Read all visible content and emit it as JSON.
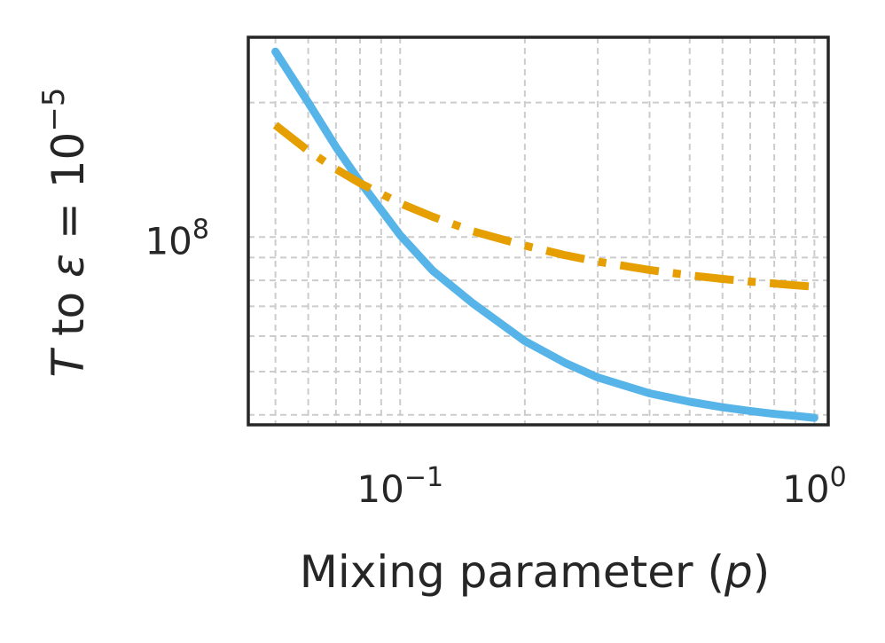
{
  "chart_data": {
    "type": "line",
    "x_scale": "log",
    "y_scale": "log",
    "xlabel": "Mixing parameter (p)",
    "ylabel": "T to ε = 10^-5",
    "xlim": [
      0.043,
      1.08
    ],
    "ylim": [
      38000000,
      280000000
    ],
    "grid": true,
    "grid_style": "dashed",
    "x_ticks": [
      {
        "value": 0.1,
        "base": "10",
        "exp": "−1"
      },
      {
        "value": 1,
        "base": "10",
        "exp": "0"
      }
    ],
    "y_ticks": [
      {
        "value": 100000000,
        "base": "10",
        "exp": "8"
      }
    ],
    "series": [
      {
        "name": "",
        "color": "#56B4E9",
        "dash": "solid",
        "x": [
          0.05,
          0.06,
          0.07,
          0.08,
          0.1,
          0.12,
          0.15,
          0.2,
          0.25,
          0.3,
          0.4,
          0.5,
          0.6,
          0.7,
          0.8,
          0.9,
          1.0
        ],
        "y": [
          260000000,
          200000000,
          159000000,
          133000000,
          101000000,
          84000000,
          71000000,
          58500000,
          52300000,
          48500000,
          44700000,
          42800000,
          41600000,
          40800000,
          40200000,
          39800000,
          39400000
        ]
      },
      {
        "name": "",
        "color": "#E69F00",
        "dash": "dashdot",
        "x": [
          0.05,
          0.06,
          0.07,
          0.08,
          0.1,
          0.12,
          0.15,
          0.2,
          0.25,
          0.3,
          0.4,
          0.5,
          0.6,
          0.7,
          0.8,
          0.9,
          1.0
        ],
        "y": [
          178000000,
          156000000,
          142000000,
          132000000,
          119000000,
          111000000,
          103000000,
          95700000,
          91100000,
          88100000,
          84400000,
          82100000,
          80600000,
          79500000,
          78700000,
          78000000,
          77400000
        ]
      }
    ]
  }
}
